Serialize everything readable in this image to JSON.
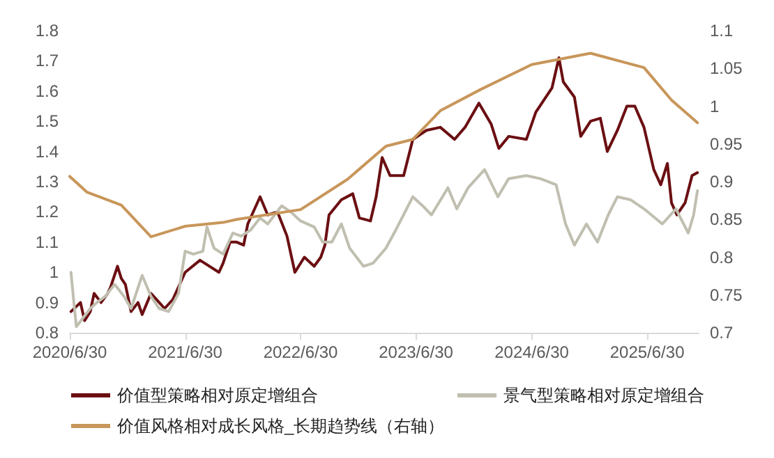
{
  "chart_data": {
    "type": "line",
    "legend": "bottom",
    "grid": false,
    "marker": "none",
    "line_style": "solid",
    "xlim": [
      "2020-06-30",
      "2025-12-10"
    ],
    "xticks": [
      {
        "value": "2020-06-30",
        "label": "2020/6/30"
      },
      {
        "value": "2021-06-30",
        "label": "2021/6/30"
      },
      {
        "value": "2022-06-30",
        "label": "2022/6/30"
      },
      {
        "value": "2023-06-30",
        "label": "2023/6/30"
      },
      {
        "value": "2024-06-30",
        "label": "2024/6/30"
      },
      {
        "value": "2025-06-30",
        "label": "2025/6/30"
      }
    ],
    "ylim": [
      0.8,
      1.8
    ],
    "yticks": [
      0.8,
      0.9,
      1,
      1.1,
      1.2,
      1.3,
      1.4,
      1.5,
      1.6,
      1.7,
      1.8
    ],
    "y2lim": [
      0.7,
      1.1
    ],
    "y2ticks": [
      0.7,
      0.75,
      0.8,
      0.85,
      0.9,
      0.95,
      1,
      1.05,
      1.1
    ],
    "series": [
      {
        "name": "价值型策略相对原定增组合",
        "color": "#6b0f12",
        "x": [
          "2020-07-04",
          "2020-08-03",
          "2020-08-16",
          "2020-09-03",
          "2020-09-15",
          "2020-10-07",
          "2020-10-28",
          "2020-11-06",
          "2020-11-28",
          "2020-12-10",
          "2020-12-23",
          "2021-01-10",
          "2021-02-01",
          "2021-02-14",
          "2021-03-14",
          "2021-04-09",
          "2021-04-26",
          "2021-05-22",
          "2021-06-30",
          "2021-08-16",
          "2021-10-15",
          "2021-10-28",
          "2021-11-19",
          "2021-12-10",
          "2022-01-01",
          "2022-01-14",
          "2022-02-22",
          "2022-03-18",
          "2022-04-18",
          "2022-05-18",
          "2022-06-12",
          "2022-07-12",
          "2022-08-12",
          "2022-09-02",
          "2022-09-15",
          "2022-09-28",
          "2022-11-06",
          "2022-12-12",
          "2023-01-02",
          "2023-02-06",
          "2023-02-24",
          "2023-03-15",
          "2023-04-09",
          "2023-05-22",
          "2023-06-20",
          "2023-08-02",
          "2023-09-15",
          "2023-10-30",
          "2023-12-02",
          "2024-01-15",
          "2024-02-23",
          "2024-03-18",
          "2024-04-18",
          "2024-06-13",
          "2024-07-13",
          "2024-09-02",
          "2024-09-24",
          "2024-10-08",
          "2024-11-12",
          "2024-12-02",
          "2025-01-02",
          "2025-02-02",
          "2025-02-24",
          "2025-03-28",
          "2025-04-27",
          "2025-05-22",
          "2025-06-20",
          "2025-07-21",
          "2025-08-12",
          "2025-09-02",
          "2025-09-15",
          "2025-10-02",
          "2025-10-28",
          "2025-11-19",
          "2025-12-06"
        ],
        "values": [
          0.87,
          0.9,
          0.84,
          0.87,
          0.93,
          0.9,
          0.93,
          0.95,
          1.02,
          0.98,
          0.96,
          0.87,
          0.9,
          0.86,
          0.93,
          0.9,
          0.88,
          0.91,
          1.0,
          1.04,
          1.0,
          1.03,
          1.1,
          1.1,
          1.09,
          1.16,
          1.25,
          1.19,
          1.2,
          1.12,
          1.0,
          1.05,
          1.02,
          1.05,
          1.09,
          1.19,
          1.24,
          1.26,
          1.18,
          1.17,
          1.25,
          1.38,
          1.32,
          1.32,
          1.44,
          1.47,
          1.48,
          1.44,
          1.48,
          1.56,
          1.49,
          1.41,
          1.45,
          1.44,
          1.53,
          1.61,
          1.71,
          1.63,
          1.58,
          1.45,
          1.5,
          1.51,
          1.4,
          1.47,
          1.55,
          1.55,
          1.48,
          1.34,
          1.29,
          1.36,
          1.23,
          1.19,
          1.23,
          1.32,
          1.33
        ]
      },
      {
        "name": "景气型策略相对原定增组合",
        "color": "#c0bfb0",
        "x": [
          "2020-07-04",
          "2020-07-13",
          "2020-07-21",
          "2020-08-12",
          "2020-09-03",
          "2020-09-24",
          "2020-10-20",
          "2020-11-19",
          "2020-12-19",
          "2021-01-10",
          "2021-02-14",
          "2021-03-14",
          "2021-04-09",
          "2021-05-09",
          "2021-06-09",
          "2021-06-30",
          "2021-07-26",
          "2021-08-25",
          "2021-09-07",
          "2021-09-29",
          "2021-10-28",
          "2021-11-28",
          "2021-12-24",
          "2022-01-23",
          "2022-02-22",
          "2022-03-18",
          "2022-05-01",
          "2022-05-30",
          "2022-06-30",
          "2022-08-12",
          "2022-09-08",
          "2022-10-07",
          "2022-11-06",
          "2022-12-02",
          "2023-01-15",
          "2023-02-14",
          "2023-03-27",
          "2023-04-27",
          "2023-06-20",
          "2023-07-21",
          "2023-08-18",
          "2023-10-09",
          "2023-11-06",
          "2023-12-12",
          "2024-02-02",
          "2024-03-15",
          "2024-04-18",
          "2024-06-13",
          "2024-07-27",
          "2024-09-15",
          "2024-10-15",
          "2024-11-12",
          "2024-12-20",
          "2025-01-24",
          "2025-02-27",
          "2025-03-28",
          "2025-05-09",
          "2025-06-20",
          "2025-08-17",
          "2025-09-29",
          "2025-11-07",
          "2025-11-24",
          "2025-12-06"
        ],
        "values": [
          1.0,
          0.9,
          0.82,
          0.85,
          0.88,
          0.9,
          0.92,
          0.96,
          0.92,
          0.88,
          0.99,
          0.92,
          0.88,
          0.87,
          0.93,
          1.07,
          1.06,
          1.07,
          1.15,
          1.08,
          1.06,
          1.13,
          1.12,
          1.14,
          1.18,
          1.16,
          1.22,
          1.2,
          1.17,
          1.15,
          1.1,
          1.1,
          1.16,
          1.08,
          1.02,
          1.03,
          1.08,
          1.14,
          1.25,
          1.22,
          1.19,
          1.28,
          1.21,
          1.28,
          1.34,
          1.25,
          1.31,
          1.32,
          1.31,
          1.29,
          1.16,
          1.09,
          1.16,
          1.1,
          1.19,
          1.25,
          1.24,
          1.21,
          1.16,
          1.21,
          1.13,
          1.19,
          1.27
        ]
      },
      {
        "name": "价值风格相对成长风格_长期趋势线（右轴）",
        "color": "#c8965a",
        "axis": "y2",
        "x": [
          "2020-06-30",
          "2020-08-24",
          "2020-12-10",
          "2021-03-14",
          "2021-06-30",
          "2021-10-28",
          "2021-12-10",
          "2022-06-30",
          "2022-11-25",
          "2023-03-27",
          "2023-06-20",
          "2023-09-15",
          "2024-01-20",
          "2024-06-30",
          "2025-01-02",
          "2025-06-20",
          "2025-09-15",
          "2025-12-06"
        ],
        "values": [
          0.907,
          0.886,
          0.869,
          0.827,
          0.841,
          0.846,
          0.85,
          0.863,
          0.903,
          0.947,
          0.956,
          0.994,
          1.022,
          1.055,
          1.07,
          1.051,
          1.008,
          0.978
        ]
      }
    ]
  }
}
